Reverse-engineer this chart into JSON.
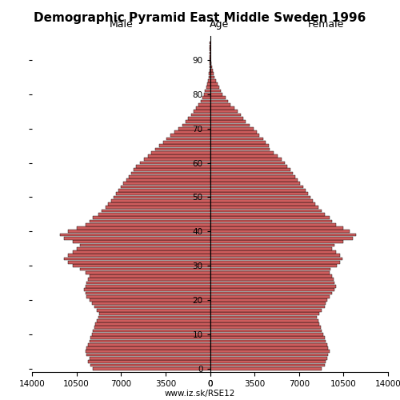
{
  "title": "Demographic Pyramid East Middle Sweden 1996",
  "subtitle": "www.iz.sk/RSE12",
  "male_label": "Male",
  "female_label": "Female",
  "age_label": "Age",
  "xlim": 14000,
  "xticks": [
    14000,
    10500,
    7000,
    3500,
    0
  ],
  "ages": [
    0,
    1,
    2,
    3,
    4,
    5,
    6,
    7,
    8,
    9,
    10,
    11,
    12,
    13,
    14,
    15,
    16,
    17,
    18,
    19,
    20,
    21,
    22,
    23,
    24,
    25,
    26,
    27,
    28,
    29,
    30,
    31,
    32,
    33,
    34,
    35,
    36,
    37,
    38,
    39,
    40,
    41,
    42,
    43,
    44,
    45,
    46,
    47,
    48,
    49,
    50,
    51,
    52,
    53,
    54,
    55,
    56,
    57,
    58,
    59,
    60,
    61,
    62,
    63,
    64,
    65,
    66,
    67,
    68,
    69,
    70,
    71,
    72,
    73,
    74,
    75,
    76,
    77,
    78,
    79,
    80,
    81,
    82,
    83,
    84,
    85,
    86,
    87,
    88,
    89,
    90,
    91,
    92,
    93,
    94,
    95
  ],
  "male": [
    9200,
    9400,
    9600,
    9500,
    9700,
    9800,
    9700,
    9600,
    9500,
    9400,
    9300,
    9200,
    9100,
    9000,
    8900,
    8800,
    8700,
    8900,
    9100,
    9300,
    9500,
    9700,
    9800,
    9900,
    9800,
    9700,
    9600,
    9500,
    9800,
    10200,
    10800,
    11200,
    11500,
    11200,
    10800,
    10500,
    10200,
    10800,
    11500,
    11800,
    11200,
    10500,
    9800,
    9500,
    9200,
    8800,
    8500,
    8200,
    8000,
    7800,
    7600,
    7400,
    7200,
    7000,
    6800,
    6600,
    6400,
    6200,
    6000,
    5800,
    5500,
    5200,
    4900,
    4600,
    4300,
    4000,
    3700,
    3400,
    3100,
    2800,
    2500,
    2200,
    1900,
    1700,
    1500,
    1300,
    1100,
    900,
    750,
    600,
    480,
    380,
    290,
    220,
    160,
    110,
    75,
    50,
    30,
    18,
    10,
    5,
    3,
    2,
    1,
    1
  ],
  "female": [
    8800,
    9000,
    9100,
    9200,
    9300,
    9400,
    9300,
    9200,
    9100,
    9000,
    8900,
    8800,
    8700,
    8600,
    8500,
    8400,
    8600,
    8800,
    9000,
    9100,
    9200,
    9400,
    9600,
    9800,
    9900,
    9800,
    9700,
    9600,
    9400,
    9500,
    10000,
    10200,
    10400,
    10200,
    9900,
    9600,
    9800,
    10500,
    11200,
    11500,
    11000,
    10500,
    9900,
    9600,
    9400,
    9000,
    8800,
    8500,
    8300,
    8100,
    7900,
    7700,
    7500,
    7300,
    7100,
    6900,
    6700,
    6500,
    6300,
    6100,
    5900,
    5600,
    5300,
    5000,
    4700,
    4600,
    4400,
    4200,
    3900,
    3700,
    3400,
    3100,
    2800,
    2600,
    2400,
    2200,
    1900,
    1600,
    1400,
    1200,
    1000,
    850,
    700,
    580,
    460,
    370,
    280,
    200,
    140,
    90,
    60,
    35,
    20,
    12,
    7,
    4
  ],
  "bar_color_male": "#cd5c5c",
  "bar_color_female": "#cd5c5c",
  "bar_edge_color": "#000000",
  "bg_color": "#ffffff",
  "bar_linewidth": 0.3
}
